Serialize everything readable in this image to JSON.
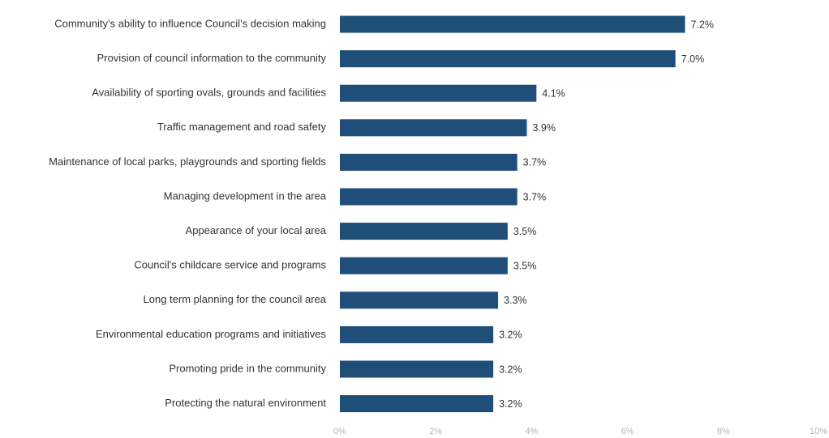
{
  "chart_data": {
    "type": "bar",
    "orientation": "horizontal",
    "title": "",
    "xlabel": "",
    "ylabel": "",
    "categories": [
      "Community’s ability to influence Council’s decision making",
      "Provision of council information to the community",
      "Availability of sporting ovals, grounds and facilities",
      "Traffic management and road safety",
      "Maintenance of local parks, playgrounds and sporting fields",
      "Managing development in the area",
      "Appearance of your local area",
      "Council's childcare service and programs",
      "Long term planning for the council area",
      "Environmental education programs and initiatives",
      "Promoting pride in the community",
      "Protecting the natural environment"
    ],
    "values": [
      7.2,
      7.0,
      4.1,
      3.9,
      3.7,
      3.7,
      3.5,
      3.5,
      3.3,
      3.2,
      3.2,
      3.2
    ],
    "value_labels": [
      "7.2%",
      "7.0%",
      "4.1%",
      "3.9%",
      "3.7%",
      "3.7%",
      "3.5%",
      "3.5%",
      "3.3%",
      "3.2%",
      "3.2%",
      "3.2%"
    ],
    "xlim": [
      0,
      10
    ],
    "x_ticks": [
      0,
      2,
      4,
      6,
      8,
      10
    ],
    "x_tick_labels": [
      "0%",
      "2%",
      "4%",
      "6%",
      "8%",
      "10%"
    ],
    "grid": false,
    "legend": "none",
    "bar_color": "#1f4e79"
  }
}
